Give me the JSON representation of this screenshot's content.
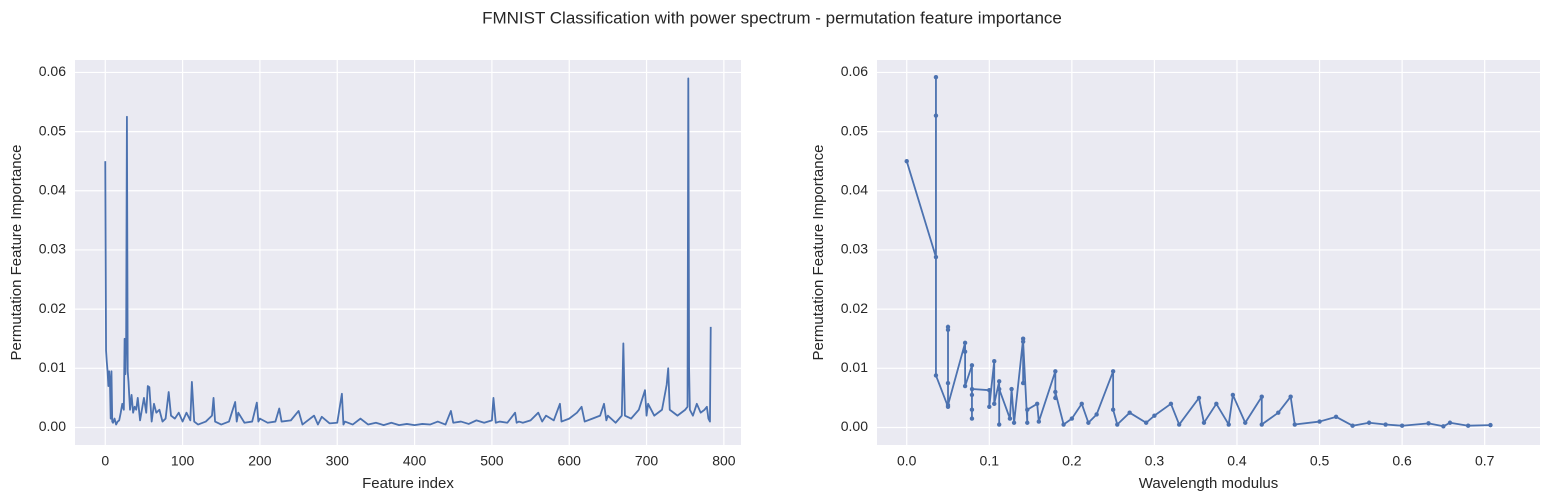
{
  "title": "FMNIST Classification with power spectrum - permutation feature importance",
  "chart_data": [
    {
      "type": "line",
      "xlabel": "Feature index",
      "ylabel": "Permutation Feature Importance",
      "color": "#4c72b0",
      "grid": true,
      "markers": false,
      "xlim": [
        -39.15,
        822.15
      ],
      "ylim": [
        -0.00296,
        0.0621
      ],
      "xticks": [
        0,
        100,
        200,
        300,
        400,
        500,
        600,
        700,
        800
      ],
      "yticks": [
        {
          "value": 0,
          "label": "0.00"
        },
        0.01,
        0.02,
        0.03,
        0.04,
        0.05,
        0.06
      ],
      "x": [
        0,
        1,
        2,
        3,
        4,
        5,
        6,
        7,
        8,
        9,
        10,
        12,
        14,
        16,
        18,
        20,
        22,
        24,
        25,
        26,
        27,
        28,
        29,
        30,
        32,
        34,
        36,
        38,
        40,
        42,
        45,
        48,
        50,
        53,
        55,
        57,
        60,
        63,
        66,
        70,
        74,
        78,
        82,
        85,
        90,
        95,
        100,
        105,
        110,
        112,
        115,
        120,
        130,
        138,
        140,
        142,
        150,
        160,
        168,
        170,
        172,
        180,
        190,
        196,
        198,
        200,
        210,
        220,
        225,
        228,
        240,
        250,
        255,
        260,
        270,
        275,
        280,
        290,
        300,
        306,
        308,
        310,
        320,
        330,
        340,
        350,
        360,
        370,
        380,
        390,
        400,
        410,
        420,
        430,
        440,
        447,
        450,
        460,
        470,
        480,
        490,
        500,
        502,
        505,
        510,
        520,
        530,
        532,
        535,
        540,
        550,
        560,
        565,
        570,
        580,
        588,
        590,
        600,
        610,
        616,
        620,
        630,
        640,
        645,
        648,
        650,
        660,
        668,
        670,
        672,
        680,
        690,
        698,
        700,
        702,
        710,
        720,
        726,
        728,
        730,
        740,
        750,
        753,
        754,
        755,
        756,
        760,
        765,
        770,
        775,
        778,
        780,
        782,
        783
      ],
      "values": [
        0.045,
        0.013,
        0.011,
        0.0095,
        0.007,
        0.0095,
        0.008,
        0.0015,
        0.0095,
        0.001,
        0.0008,
        0.0015,
        0.0005,
        0.001,
        0.0012,
        0.0025,
        0.004,
        0.003,
        0.015,
        0.009,
        0.0148,
        0.0525,
        0.0095,
        0.0078,
        0.003,
        0.0055,
        0.0025,
        0.0035,
        0.003,
        0.005,
        0.0012,
        0.0035,
        0.005,
        0.0025,
        0.007,
        0.0068,
        0.001,
        0.004,
        0.0025,
        0.003,
        0.001,
        0.0015,
        0.006,
        0.002,
        0.0015,
        0.0025,
        0.001,
        0.0025,
        0.0012,
        0.0077,
        0.001,
        0.0005,
        0.001,
        0.002,
        0.005,
        0.001,
        0.0005,
        0.001,
        0.0043,
        0.001,
        0.0025,
        0.0008,
        0.001,
        0.0042,
        0.001,
        0.0015,
        0.0008,
        0.001,
        0.0032,
        0.001,
        0.0012,
        0.0028,
        0.0005,
        0.001,
        0.002,
        0.0005,
        0.0018,
        0.0007,
        0.0008,
        0.0057,
        0.0005,
        0.001,
        0.0005,
        0.0015,
        0.0005,
        0.0008,
        0.0004,
        0.0008,
        0.0004,
        0.0006,
        0.0004,
        0.0006,
        0.0005,
        0.001,
        0.0005,
        0.0028,
        0.0008,
        0.001,
        0.0006,
        0.0012,
        0.0008,
        0.0012,
        0.005,
        0.0008,
        0.001,
        0.0008,
        0.0025,
        0.0008,
        0.001,
        0.0008,
        0.0012,
        0.0025,
        0.001,
        0.002,
        0.0012,
        0.004,
        0.001,
        0.0015,
        0.0025,
        0.0035,
        0.001,
        0.0015,
        0.002,
        0.004,
        0.0012,
        0.002,
        0.0008,
        0.002,
        0.0142,
        0.002,
        0.0015,
        0.003,
        0.0063,
        0.002,
        0.004,
        0.002,
        0.003,
        0.0072,
        0.01,
        0.003,
        0.002,
        0.003,
        0.0035,
        0.059,
        0.01,
        0.003,
        0.002,
        0.004,
        0.0025,
        0.003,
        0.0035,
        0.0015,
        0.001,
        0.017
      ]
    },
    {
      "type": "line",
      "xlabel": "Wavelength modulus",
      "ylabel": "Permutation Feature Importance",
      "color": "#4c72b0",
      "grid": true,
      "markers": true,
      "xlim": [
        -0.036,
        0.767
      ],
      "ylim": [
        -0.00296,
        0.0621
      ],
      "xticks": [
        {
          "value": 0,
          "label": "0.0"
        },
        0.1,
        0.2,
        0.3,
        0.4,
        0.5,
        0.6,
        0.7
      ],
      "yticks": [
        {
          "value": 0,
          "label": "0.00"
        },
        0.01,
        0.02,
        0.03,
        0.04,
        0.05,
        0.06
      ],
      "x": [
        0,
        0.0354,
        0.0354,
        0.0354,
        0.0354,
        0.05,
        0.05,
        0.05,
        0.05,
        0.05,
        0.0707,
        0.0707,
        0.0707,
        0.079,
        0.079,
        0.079,
        0.079,
        0.0791,
        0.1,
        0.1,
        0.106,
        0.106,
        0.112,
        0.112,
        0.112,
        0.125,
        0.127,
        0.13,
        0.141,
        0.141,
        0.141,
        0.146,
        0.146,
        0.158,
        0.16,
        0.18,
        0.18,
        0.18,
        0.19,
        0.2,
        0.212,
        0.22,
        0.23,
        0.25,
        0.25,
        0.255,
        0.27,
        0.29,
        0.3,
        0.32,
        0.33,
        0.354,
        0.36,
        0.375,
        0.39,
        0.395,
        0.41,
        0.43,
        0.43,
        0.45,
        0.465,
        0.47,
        0.5,
        0.52,
        0.54,
        0.56,
        0.58,
        0.6,
        0.632,
        0.65,
        0.658,
        0.68,
        0.707
      ],
      "values": [
        0.045,
        0.0288,
        0.0592,
        0.0527,
        0.0088,
        0.0035,
        0.017,
        0.0165,
        0.0075,
        0.0038,
        0.0143,
        0.0128,
        0.007,
        0.0105,
        0.0015,
        0.003,
        0.0055,
        0.0065,
        0.0063,
        0.0035,
        0.0112,
        0.004,
        0.0078,
        0.0005,
        0.0065,
        0.0015,
        0.0065,
        0.0008,
        0.015,
        0.0075,
        0.0145,
        0.0008,
        0.003,
        0.004,
        0.001,
        0.0095,
        0.005,
        0.006,
        0.0005,
        0.0015,
        0.004,
        0.0008,
        0.0022,
        0.0095,
        0.003,
        0.0005,
        0.0025,
        0.0008,
        0.002,
        0.004,
        0.0005,
        0.005,
        0.0008,
        0.004,
        0.0005,
        0.0055,
        0.0008,
        0.0052,
        0.0005,
        0.0025,
        0.0052,
        0.0005,
        0.001,
        0.0018,
        0.0003,
        0.0008,
        0.0005,
        0.0003,
        0.0007,
        0.0002,
        0.0008,
        0.0003,
        0.0004
      ]
    }
  ]
}
